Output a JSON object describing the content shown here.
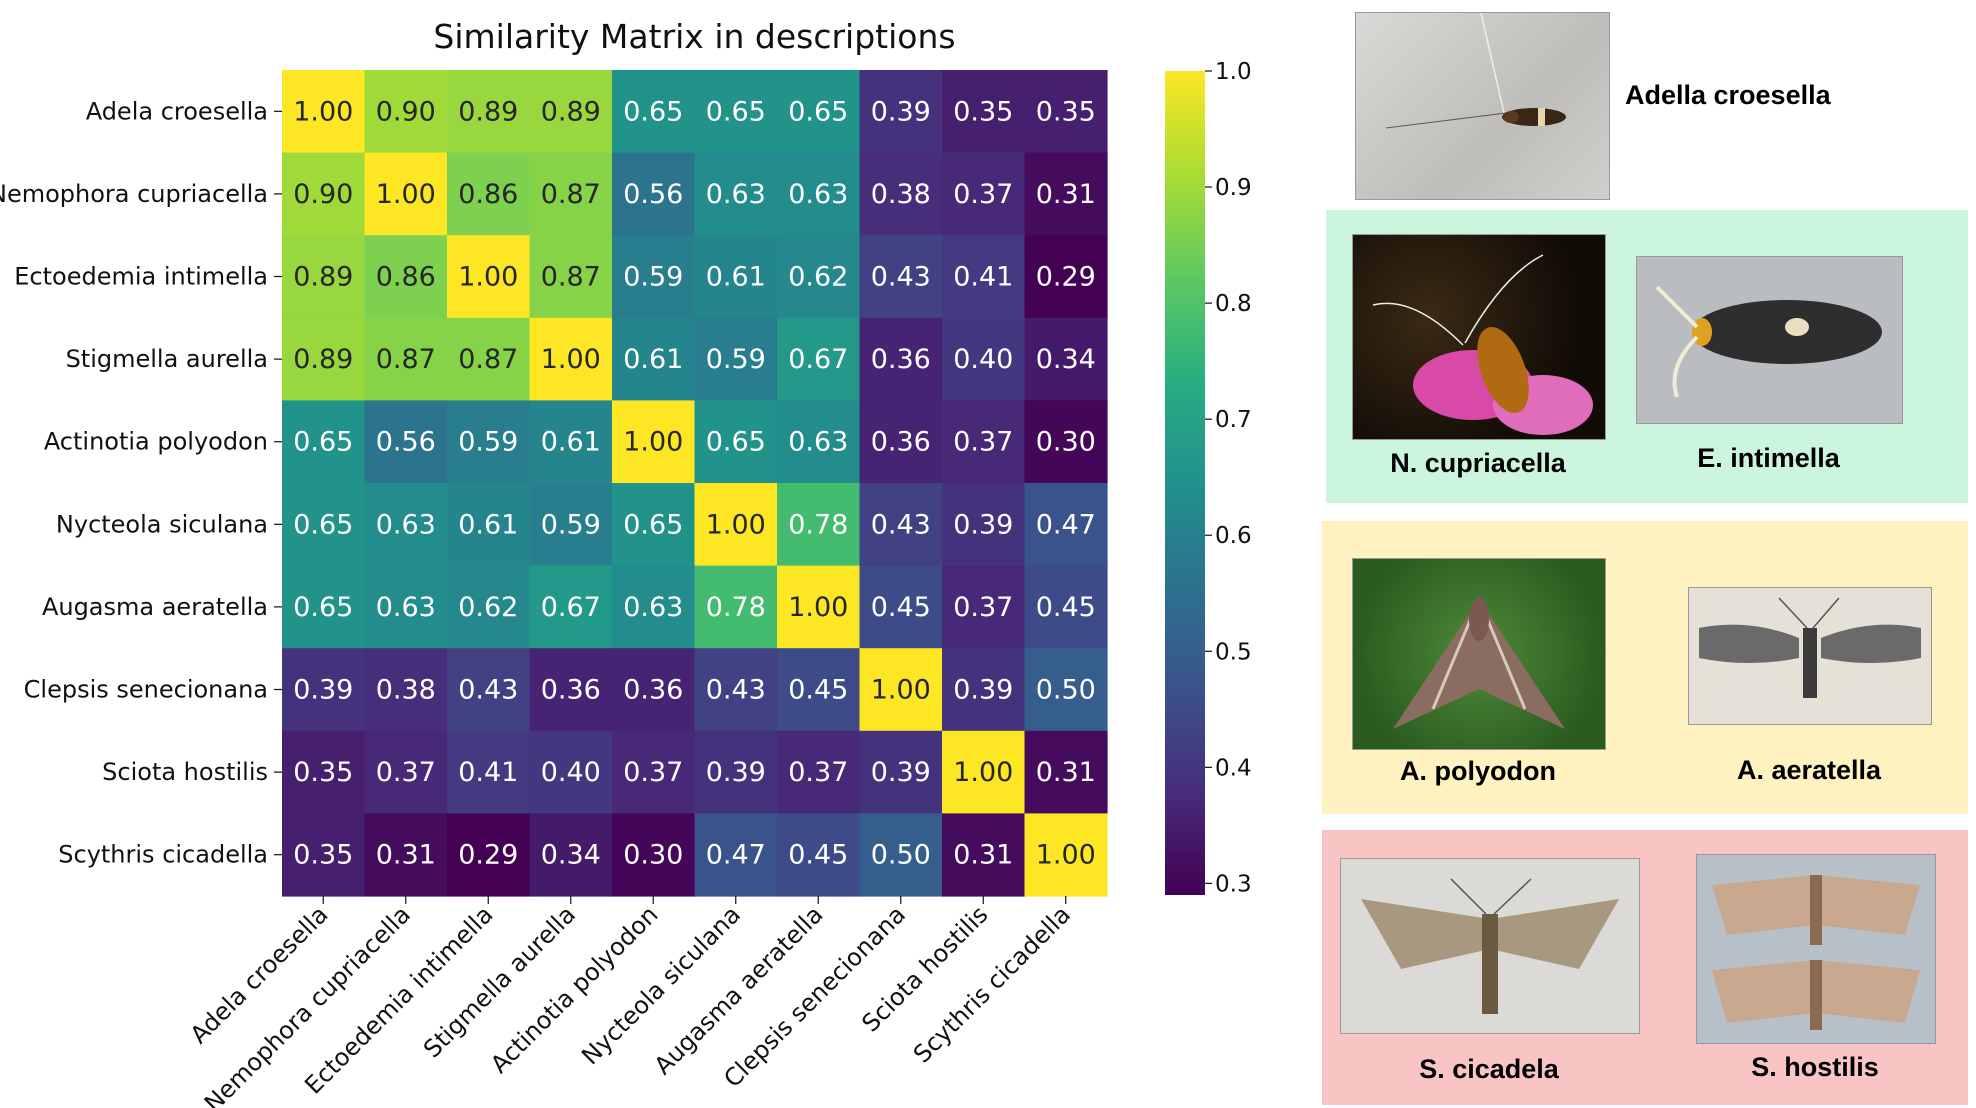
{
  "chart_data": {
    "type": "heatmap",
    "title": "Similarity Matrix in descriptions",
    "rows": [
      "Adela croesella",
      "Nemophora cupriacella",
      "Ectoedemia intimella",
      "Stigmella aurella",
      "Actinotia polyodon",
      "Nycteola siculana",
      "Augasma aeratella",
      "Clepsis senecionana",
      "Sciota hostilis",
      "Scythris cicadella"
    ],
    "columns": [
      "Adela croesella",
      "Nemophora cupriacella",
      "Ectoedemia intimella",
      "Stigmella aurella",
      "Actinotia polyodon",
      "Nycteola siculana",
      "Augasma aeratella",
      "Clepsis senecionana",
      "Sciota hostilis",
      "Scythris cicadella"
    ],
    "values": [
      [
        1.0,
        0.9,
        0.89,
        0.89,
        0.65,
        0.65,
        0.65,
        0.39,
        0.35,
        0.35
      ],
      [
        0.9,
        1.0,
        0.86,
        0.87,
        0.56,
        0.63,
        0.63,
        0.38,
        0.37,
        0.31
      ],
      [
        0.89,
        0.86,
        1.0,
        0.87,
        0.59,
        0.61,
        0.62,
        0.43,
        0.41,
        0.29
      ],
      [
        0.89,
        0.87,
        0.87,
        1.0,
        0.61,
        0.59,
        0.67,
        0.36,
        0.4,
        0.34
      ],
      [
        0.65,
        0.56,
        0.59,
        0.61,
        1.0,
        0.65,
        0.63,
        0.36,
        0.37,
        0.3
      ],
      [
        0.65,
        0.63,
        0.61,
        0.59,
        0.65,
        1.0,
        0.78,
        0.43,
        0.39,
        0.47
      ],
      [
        0.65,
        0.63,
        0.62,
        0.67,
        0.63,
        0.78,
        1.0,
        0.45,
        0.37,
        0.45
      ],
      [
        0.39,
        0.38,
        0.43,
        0.36,
        0.36,
        0.43,
        0.45,
        1.0,
        0.39,
        0.5
      ],
      [
        0.35,
        0.37,
        0.41,
        0.4,
        0.37,
        0.39,
        0.37,
        0.39,
        1.0,
        0.31
      ],
      [
        0.35,
        0.31,
        0.29,
        0.34,
        0.3,
        0.47,
        0.45,
        0.5,
        0.31,
        1.0
      ]
    ],
    "colormap": "viridis",
    "colorbar": {
      "range": [
        0.29,
        1.0
      ],
      "ticks": [
        "1.0",
        "0.9",
        "0.8",
        "0.7",
        "0.6",
        "0.5",
        "0.4",
        "0.3"
      ]
    }
  },
  "panels": {
    "top": {
      "caption": "Adella croesella",
      "background": "#ffffff"
    },
    "green": {
      "background": "#ccf5dd",
      "captions": [
        "N. cupriacella",
        "E. intimella"
      ]
    },
    "yellow": {
      "background": "#fdf2c0",
      "captions": [
        "A. polyodon",
        "A. aeratella"
      ]
    },
    "red": {
      "background": "#f8c4c4",
      "captions": [
        "S. cicadela",
        "S. hostilis"
      ]
    }
  }
}
